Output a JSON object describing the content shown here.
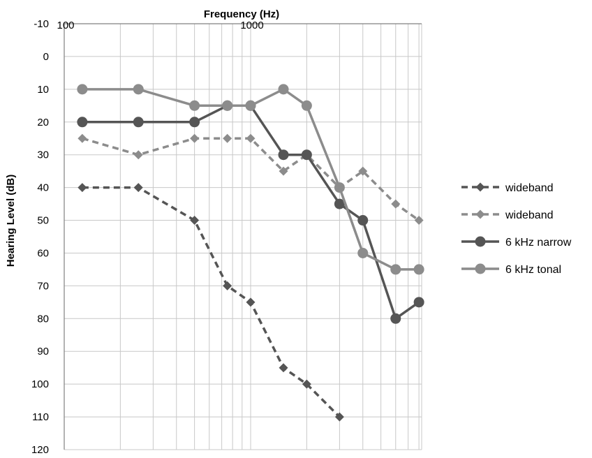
{
  "chart_data": {
    "type": "line",
    "title": "",
    "xlabel": "Frequency (Hz)",
    "ylabel": "Hearing Level (dB)",
    "x_scale": "log",
    "xlim": [
      100,
      8000
    ],
    "ylim": [
      -10,
      120
    ],
    "y_inverted": true,
    "x_ticks": [
      "100",
      "1000"
    ],
    "x_tick_values": [
      100,
      1000
    ],
    "y_ticks": [
      "-10",
      "0",
      "10",
      "20",
      "30",
      "40",
      "50",
      "60",
      "70",
      "80",
      "90",
      "100",
      "110",
      "120"
    ],
    "y_tick_values": [
      -10,
      0,
      10,
      20,
      30,
      40,
      50,
      60,
      70,
      80,
      90,
      100,
      110,
      120
    ],
    "grid": true,
    "legend_position": "right",
    "series": [
      {
        "name": "wideband",
        "color": "#555555",
        "line_style": "dashed",
        "marker": "diamond",
        "x": [
          125,
          250,
          500,
          750,
          1000,
          1500,
          2000,
          3000
        ],
        "y": [
          40,
          40,
          50,
          70,
          75,
          95,
          100,
          110
        ]
      },
      {
        "name": "wideband",
        "color": "#8c8c8c",
        "line_style": "dashed",
        "marker": "diamond",
        "x": [
          125,
          250,
          500,
          750,
          1000,
          1500,
          2000,
          3000,
          4000,
          6000,
          8000
        ],
        "y": [
          25,
          30,
          25,
          25,
          25,
          35,
          30,
          40,
          35,
          45,
          50
        ]
      },
      {
        "name": "6 kHz narrow",
        "color": "#555555",
        "line_style": "solid",
        "marker": "circle",
        "x": [
          125,
          250,
          500,
          750,
          1000,
          1500,
          2000,
          3000,
          4000,
          6000,
          8000
        ],
        "y": [
          20,
          20,
          20,
          15,
          15,
          30,
          30,
          45,
          50,
          80,
          75
        ]
      },
      {
        "name": "6 kHz tonal",
        "color": "#8c8c8c",
        "line_style": "solid",
        "marker": "circle",
        "x": [
          125,
          250,
          500,
          750,
          1000,
          1500,
          2000,
          3000,
          4000,
          6000,
          8000
        ],
        "y": [
          10,
          10,
          15,
          15,
          15,
          10,
          15,
          40,
          60,
          65,
          65
        ]
      }
    ]
  }
}
